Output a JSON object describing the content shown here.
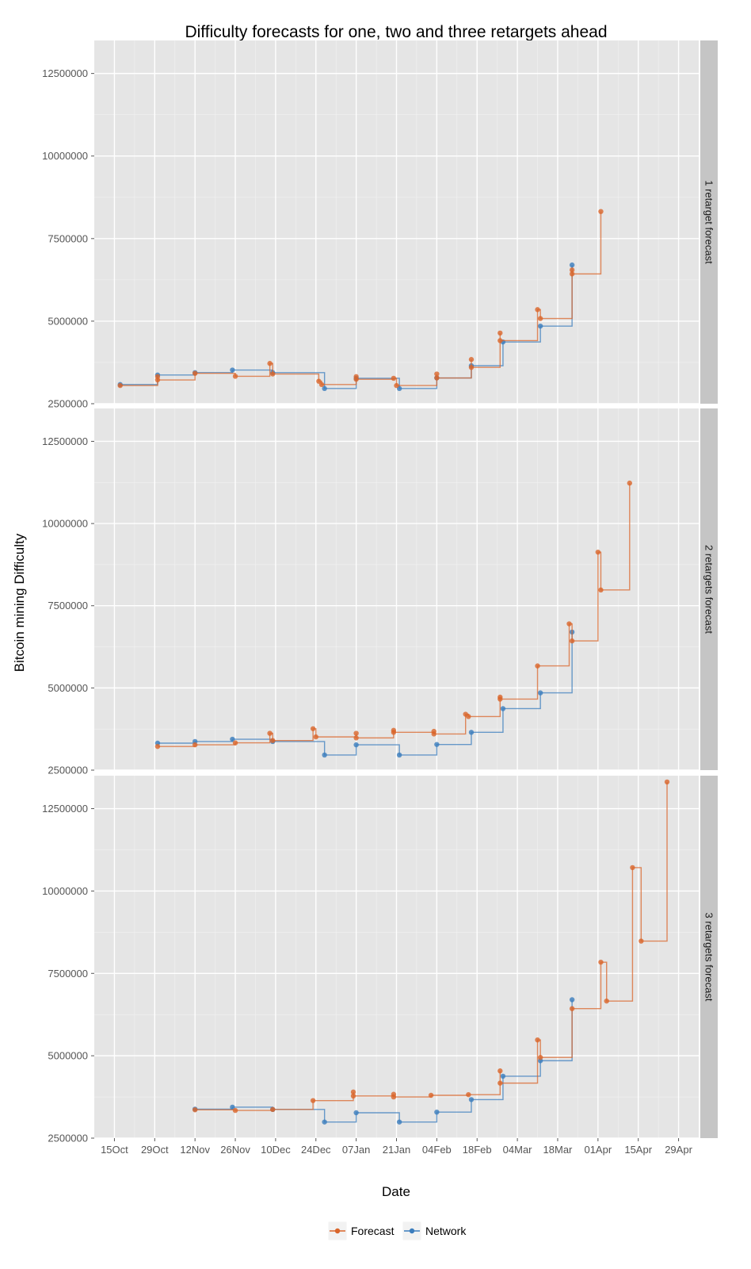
{
  "chart_data": {
    "type": "line",
    "title": "Difficulty forecasts for one, two and three retargets ahead",
    "xlabel": "Date",
    "ylabel": "Bitcoin mining Difficulty",
    "x_ticks": [
      "15Oct",
      "29Oct",
      "12Nov",
      "26Nov",
      "10Dec",
      "24Dec",
      "07Jan",
      "21Jan",
      "04Feb",
      "18Feb",
      "04Mar",
      "18Mar",
      "01Apr",
      "15Apr",
      "29Apr"
    ],
    "y_ticks": [
      "2500000",
      "5000000",
      "7500000",
      "10000000",
      "12500000"
    ],
    "ylim": [
      2500000,
      13500000
    ],
    "xlim": [
      "2012-10-08",
      "2013-05-06"
    ],
    "grid": true,
    "legend_position": "bottom",
    "colors": {
      "Forecast": "#d9652b",
      "Network": "#3b7dbd"
    },
    "legend": [
      "Forecast",
      "Network"
    ],
    "panels": [
      {
        "strip": "1 retarget forecast",
        "series": [
          {
            "name": "Network",
            "x": [
              "2012-10-17",
              "2012-10-30",
              "2012-11-12",
              "2012-11-25",
              "2012-12-09",
              "2012-12-27",
              "2013-01-07",
              "2013-01-22",
              "2013-02-04",
              "2013-02-16",
              "2013-02-27",
              "2013-03-12",
              "2013-03-23"
            ],
            "y": [
              3080000,
              3370000,
              3440000,
              3520000,
              3440000,
              2960000,
              3270000,
              2960000,
              3280000,
              3650000,
              4370000,
              4850000,
              6700000
            ]
          },
          {
            "name": "Forecast",
            "x": [
              "2012-10-17",
              "2012-10-30",
              "2012-10-30",
              "2012-11-12",
              "2012-11-26",
              "2012-12-08",
              "2012-12-09",
              "2012-12-25",
              "2012-12-26",
              "2013-01-07",
              "2013-01-07",
              "2013-01-20",
              "2013-01-21",
              "2013-02-04",
              "2013-02-04",
              "2013-02-16",
              "2013-02-16",
              "2013-02-26",
              "2013-02-26",
              "2013-03-11",
              "2013-03-12",
              "2013-03-23",
              "2013-03-23",
              "2013-04-02"
            ],
            "y": [
              3050000,
              3320000,
              3220000,
              3420000,
              3330000,
              3720000,
              3400000,
              3180000,
              3080000,
              3320000,
              3240000,
              3270000,
              3050000,
              3400000,
              3280000,
              3840000,
              3600000,
              4640000,
              4410000,
              5350000,
              5080000,
              6550000,
              6430000,
              8320000
            ]
          }
        ]
      },
      {
        "strip": "2 retargets forecast",
        "series": [
          {
            "name": "Network",
            "x": [
              "2012-10-30",
              "2012-11-12",
              "2012-11-25",
              "2012-12-09",
              "2012-12-27",
              "2013-01-07",
              "2013-01-22",
              "2013-02-04",
              "2013-02-16",
              "2013-02-27",
              "2013-03-12",
              "2013-03-23"
            ],
            "y": [
              3320000,
              3370000,
              3440000,
              3370000,
              2960000,
              3270000,
              2960000,
              3280000,
              3650000,
              4370000,
              4850000,
              6700000
            ]
          },
          {
            "name": "Forecast",
            "x": [
              "2012-10-30",
              "2012-11-12",
              "2012-11-26",
              "2012-12-08",
              "2012-12-09",
              "2012-12-23",
              "2012-12-24",
              "2013-01-07",
              "2013-01-07",
              "2013-01-20",
              "2013-01-20",
              "2013-02-03",
              "2013-02-03",
              "2013-02-14",
              "2013-02-15",
              "2013-02-26",
              "2013-02-26",
              "2013-03-11",
              "2013-03-22",
              "2013-03-23",
              "2013-04-01",
              "2013-04-02",
              "2013-04-12"
            ],
            "y": [
              3220000,
              3270000,
              3330000,
              3620000,
              3400000,
              3760000,
              3510000,
              3620000,
              3480000,
              3710000,
              3650000,
              3680000,
              3600000,
              4200000,
              4130000,
              4720000,
              4660000,
              5670000,
              6950000,
              6430000,
              9130000,
              7980000,
              11230000
            ]
          }
        ]
      },
      {
        "strip": "3 retargets forecast",
        "series": [
          {
            "name": "Network",
            "x": [
              "2012-11-12",
              "2012-11-25",
              "2012-12-09",
              "2012-12-27",
              "2013-01-07",
              "2013-01-22",
              "2013-02-04",
              "2013-02-16",
              "2013-02-27",
              "2013-03-12",
              "2013-03-23"
            ],
            "y": [
              3380000,
              3440000,
              3370000,
              2990000,
              3270000,
              2990000,
              3290000,
              3670000,
              4380000,
              4850000,
              6700000
            ]
          },
          {
            "name": "Forecast",
            "x": [
              "2012-11-12",
              "2012-11-26",
              "2012-12-09",
              "2012-12-23",
              "2013-01-06",
              "2013-01-06",
              "2013-01-20",
              "2013-01-20",
              "2013-02-02",
              "2013-02-15",
              "2013-02-26",
              "2013-02-26",
              "2013-03-11",
              "2013-03-12",
              "2013-03-23",
              "2013-04-02",
              "2013-04-04",
              "2013-04-13",
              "2013-04-16",
              "2013-04-25"
            ],
            "y": [
              3360000,
              3340000,
              3370000,
              3640000,
              3900000,
              3780000,
              3830000,
              3750000,
              3800000,
              3820000,
              4540000,
              4170000,
              5480000,
              4950000,
              6430000,
              7840000,
              6660000,
              10710000,
              8480000,
              13310000
            ]
          }
        ]
      }
    ]
  }
}
